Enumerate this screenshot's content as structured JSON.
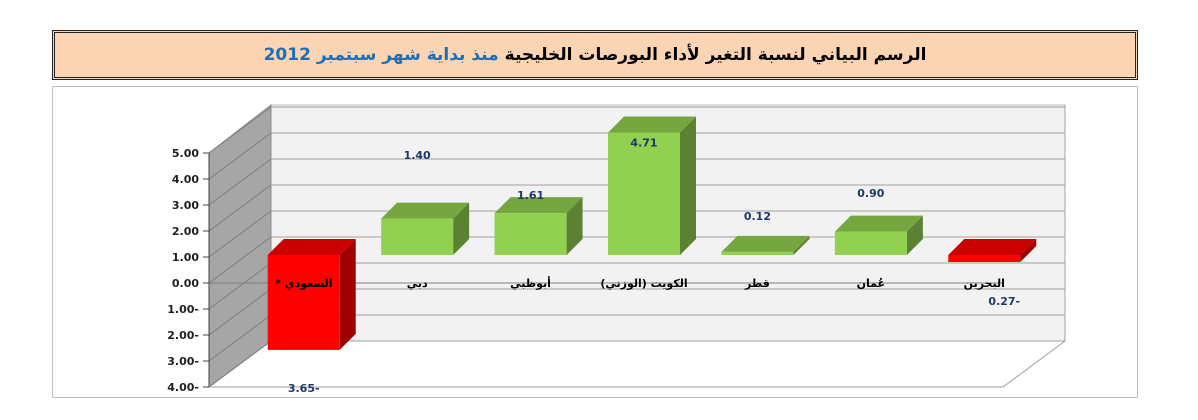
{
  "header": {
    "title_main": "الرسم البياني لنسبة التغير لأداء البورصات الخليجية",
    "title_accent": "منذ بداية شهر سبتمبر 2012"
  },
  "chart_data": {
    "type": "bar",
    "categories": [
      "السعودي *",
      "دبي",
      "أبوظبي",
      "الكويت (الوزني)",
      "قطر",
      "عُمان",
      "البحرين"
    ],
    "values": [
      -3.65,
      1.4,
      1.61,
      4.71,
      0.12,
      0.9,
      -0.27
    ],
    "value_labels": [
      "3.65-",
      "1.40",
      "1.61",
      "4.71",
      "0.12",
      "0.90",
      "0.27-"
    ],
    "y_ticks": [
      "5.00",
      "4.00",
      "3.00",
      "2.00",
      "1.00",
      "0.00",
      "1.00-",
      "2.00-",
      "3.00-",
      "4.00-"
    ],
    "ylim": [
      -4,
      5
    ],
    "grid": true,
    "style": "3d",
    "colors": {
      "positive": "#92d050",
      "negative": "#ff0000",
      "wall": "#a6a6a6",
      "floor": "#ffffff"
    }
  }
}
